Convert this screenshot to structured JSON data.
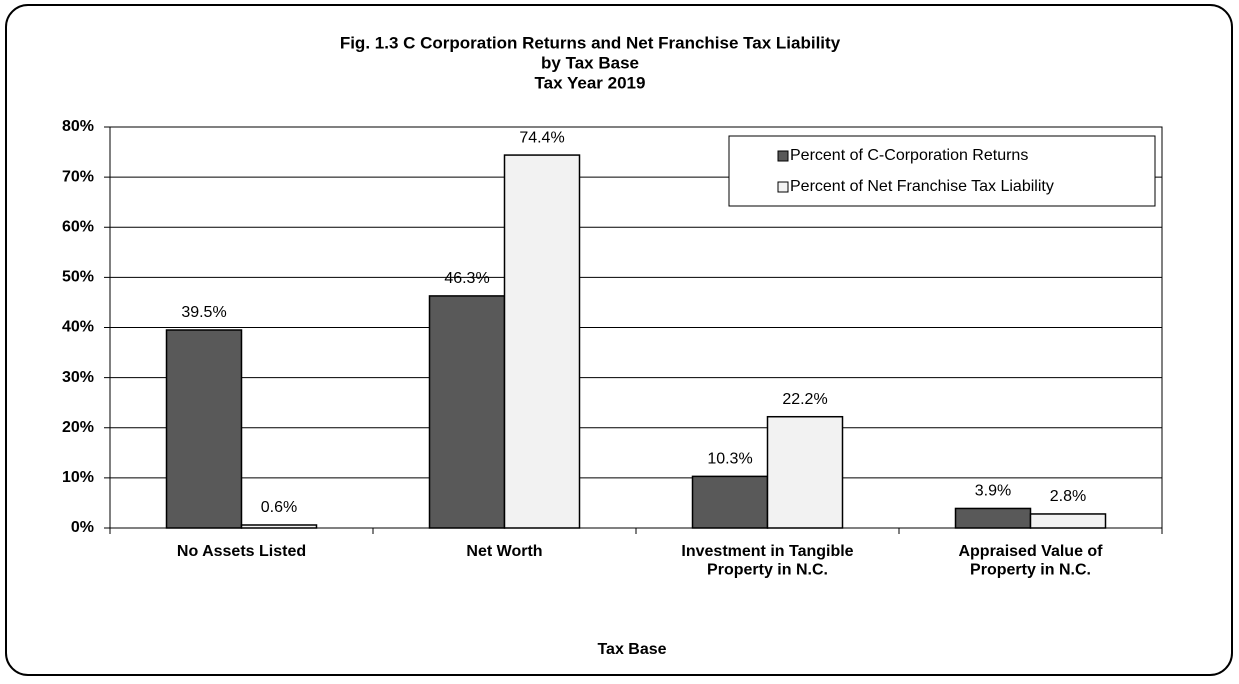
{
  "chart_data": {
    "type": "bar",
    "title": [
      "Fig. 1.3  C Corporation Returns and Net Franchise Tax Liability",
      "by Tax Base",
      "Tax Year 2019"
    ],
    "x_label": "Tax Base",
    "categories": [
      "No Assets Listed",
      "Net Worth",
      "Investment in Tangible\nProperty in N.C.",
      "Appraised Value of\nProperty in N.C."
    ],
    "series": [
      {
        "name": "Percent of C-Corporation Returns",
        "color": "#595959",
        "values": [
          39.5,
          46.3,
          10.3,
          3.9
        ],
        "value_labels": [
          "39.5%",
          "46.3%",
          "10.3%",
          "3.9%"
        ]
      },
      {
        "name": "Percent of Net Franchise Tax Liability",
        "color": "#f2f2f2",
        "values": [
          0.6,
          74.4,
          22.2,
          2.8
        ],
        "value_labels": [
          "0.6%",
          "74.4%",
          "22.2%",
          "2.8%"
        ]
      }
    ],
    "ylim": [
      0,
      80
    ],
    "yticks": [
      {
        "value": 0,
        "label": "0%"
      },
      {
        "value": 10,
        "label": "10%"
      },
      {
        "value": 20,
        "label": "20%"
      },
      {
        "value": 30,
        "label": "30%"
      },
      {
        "value": 40,
        "label": "40%"
      },
      {
        "value": 50,
        "label": "50%"
      },
      {
        "value": 60,
        "label": "60%"
      },
      {
        "value": 70,
        "label": "70%"
      },
      {
        "value": 80,
        "label": "80%"
      }
    ],
    "grid": true,
    "legend": "upper right"
  }
}
